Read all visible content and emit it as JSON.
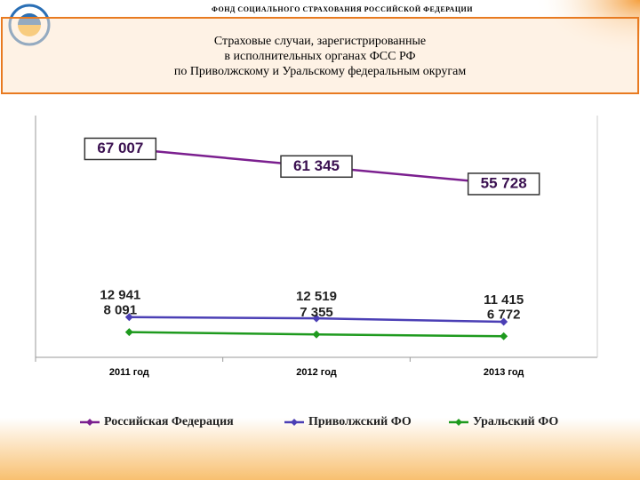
{
  "header": {
    "org": "ФОНД СОЦИАЛЬНОГО СТРАХОВАНИЯ РОССИЙСКОЙ ФЕДЕРАЦИИ"
  },
  "chart_data": {
    "type": "line",
    "title": [
      "Страховые случаи, зарегистрированные",
      "в исполнительных органах ФСС РФ",
      "по Приволжскому и Уральскому федеральным округам"
    ],
    "categories": [
      "2011 год",
      "2012 год",
      "2013 год"
    ],
    "series": [
      {
        "name": "Российская Федерация",
        "color": "#7b1f8f",
        "values": [
          67007,
          61345,
          55728
        ],
        "value_labels": [
          "67 007",
          "61 345",
          "55 728"
        ]
      },
      {
        "name": "Приволжский ФО",
        "color": "#4b3fb5",
        "values": [
          12941,
          12519,
          11415
        ],
        "value_labels": [
          "12 941",
          "12 519",
          "11 415"
        ]
      },
      {
        "name": "Уральский ФО",
        "color": "#1e9a1e",
        "values": [
          8091,
          7355,
          6772
        ],
        "value_labels": [
          "8 091",
          "7 355",
          "6 772"
        ]
      }
    ],
    "ylim": [
      0,
      72000
    ],
    "legend": "bottom"
  }
}
